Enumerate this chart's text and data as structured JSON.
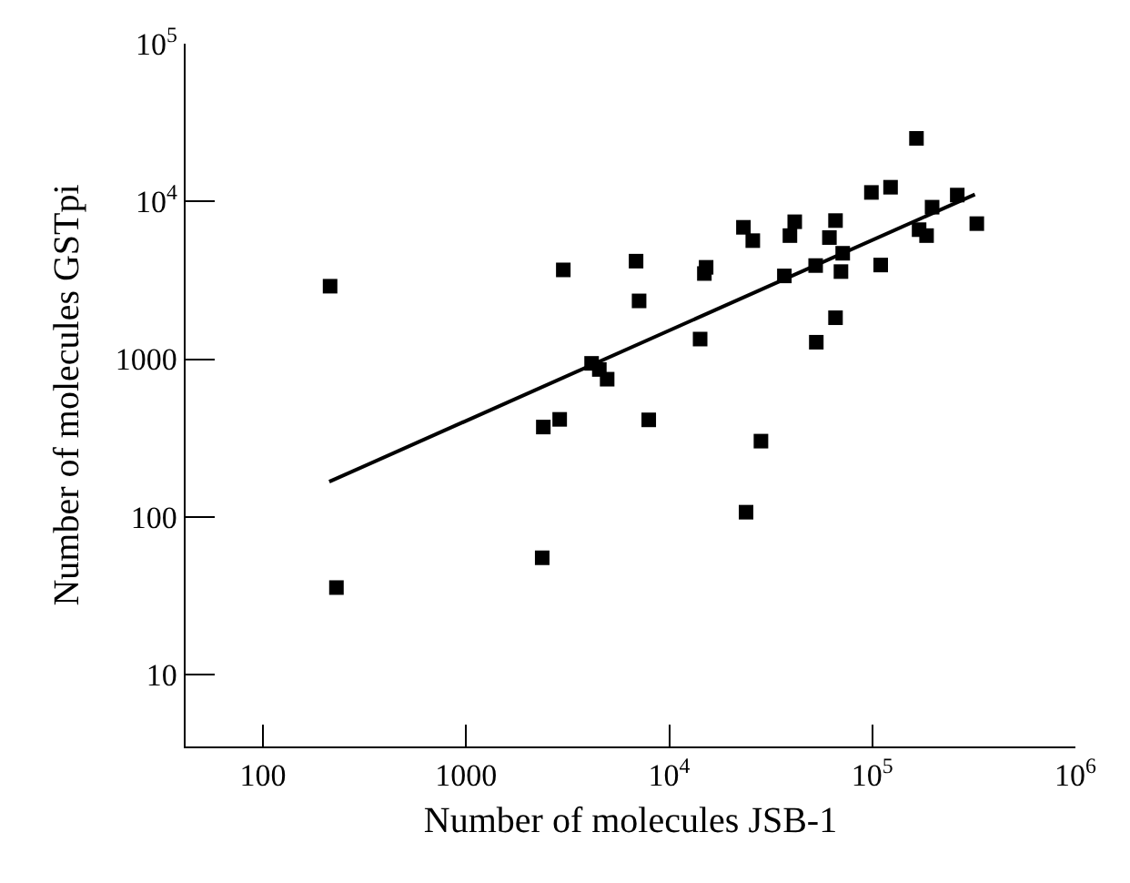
{
  "chart_data": {
    "type": "scatter",
    "xlabel": "Number of molecules JSB-1",
    "ylabel": "Number of molecules GSTpi",
    "log": "xy",
    "grid": false,
    "xlim": [
      41.6,
      1000000
    ],
    "ylim": [
      3.5,
      100000
    ],
    "xticks": [
      100,
      1000,
      {
        "value": 10000,
        "label": "10$^{4}$"
      },
      {
        "value": 100000,
        "label": "10$^{5}$"
      },
      {
        "value": 1000000,
        "label": "10$^{6}$"
      }
    ],
    "yticks": [
      10,
      100,
      1000,
      {
        "value": 10000,
        "label": "10$^{4}$"
      },
      {
        "value": 100000,
        "label": "10$^{5}$"
      }
    ],
    "series": [
      {
        "marker": "square",
        "color": "#000000",
        "x": [
          214,
          3010,
          6870,
          7110,
          15200,
          14900,
          14200,
          23200,
          25800,
          36900,
          41500,
          39300,
          52600,
          53000,
          65900,
          61500,
          71500,
          70100,
          65900,
          110000,
          99000,
          123000,
          165000,
          197000,
          170000,
          185000,
          262000,
          327000,
          4150,
          4530,
          4950,
          2400,
          2890,
          7930,
          28300,
          23900,
          2370,
          230
        ],
        "values": [
          2900,
          3680,
          4180,
          2340,
          3820,
          3490,
          1340,
          6850,
          5640,
          3370,
          7430,
          6070,
          3920,
          1280,
          7560,
          5900,
          4690,
          3590,
          1830,
          3950,
          11400,
          12300,
          25100,
          9190,
          6620,
          6070,
          10970,
          7230,
          940,
          860,
          746,
          371,
          415,
          412,
          302,
          107,
          55,
          35.6
        ]
      },
      {
        "type": "line",
        "color": "#000000",
        "line_style": "solid",
        "x": [
          212,
          320000
        ],
        "values": [
          167,
          11070
        ]
      }
    ]
  }
}
